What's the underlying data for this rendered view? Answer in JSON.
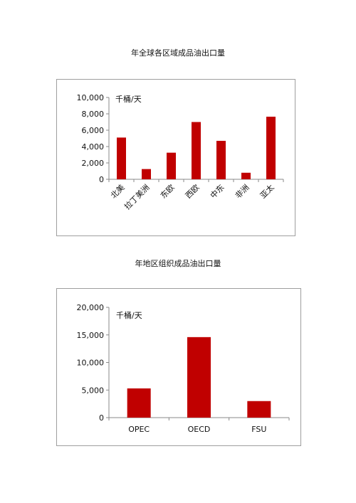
{
  "charts": [
    {
      "heading": "年全球各区域成品油出口量",
      "chart_data": {
        "type": "bar",
        "title": "年全球各区域成品油出口量",
        "unit_label": "千桶/天",
        "categories": [
          "北美",
          "拉丁美洲",
          "东欧",
          "西欧",
          "中东",
          "非洲",
          "亚太"
        ],
        "values": [
          5100,
          1250,
          3250,
          7000,
          4700,
          800,
          7650
        ],
        "yticks": [
          0,
          2000,
          4000,
          6000,
          8000,
          10000
        ],
        "ytick_labels": [
          "0",
          "2,000",
          "4,000",
          "6,000",
          "8,000",
          "10,000"
        ],
        "ylim": [
          0,
          10000
        ],
        "bar_color": "#c00000",
        "grid": false,
        "legend": "none",
        "category_label_rotation": "diagonal"
      }
    },
    {
      "heading": "年地区组织成品油出口量",
      "chart_data": {
        "type": "bar",
        "title": "年地区组织成品油出口量",
        "unit_label": "千桶/天",
        "categories": [
          "OPEC",
          "OECD",
          "FSU"
        ],
        "values": [
          5300,
          14600,
          3000
        ],
        "yticks": [
          0,
          5000,
          10000,
          15000,
          20000
        ],
        "ytick_labels": [
          "0",
          "5,000",
          "10,000",
          "15,000",
          "20,000"
        ],
        "ylim": [
          0,
          20000
        ],
        "bar_color": "#c00000",
        "grid": false,
        "legend": "none",
        "category_label_rotation": "none"
      }
    }
  ]
}
